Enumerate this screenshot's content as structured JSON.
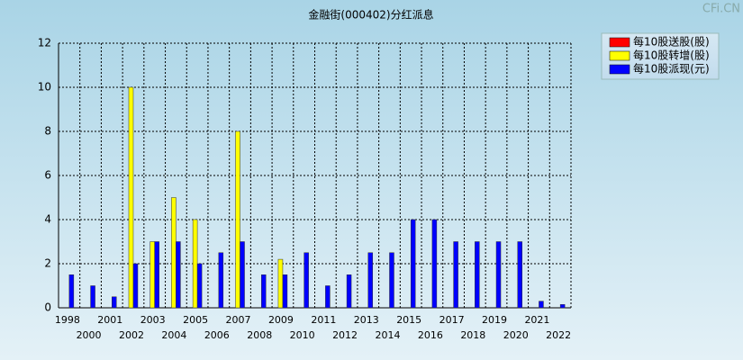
{
  "chart_data": {
    "type": "bar",
    "title": "金融街(000402)分红派息",
    "watermark": "CFi.CN",
    "categories": [
      "1998",
      "2000",
      "2001",
      "2002",
      "2003",
      "2004",
      "2005",
      "2006",
      "2007",
      "2008",
      "2009",
      "2010",
      "2011",
      "2012",
      "2013",
      "2014",
      "2015",
      "2016",
      "2017",
      "2018",
      "2019",
      "2020",
      "2021",
      "2022"
    ],
    "series": [
      {
        "name": "每10股送股(股)",
        "color": "#ff0000",
        "values": [
          0,
          0,
          0,
          0,
          0,
          0,
          0,
          0,
          0,
          0,
          0,
          0,
          0,
          0,
          0,
          0,
          0,
          0,
          0,
          0,
          0,
          0,
          0,
          0
        ]
      },
      {
        "name": "每10股转增(股)",
        "color": "#ffff00",
        "values": [
          0,
          0,
          0,
          10,
          3,
          5,
          4,
          0,
          8,
          0,
          2.2,
          0,
          0,
          0,
          0,
          0,
          0,
          0,
          0,
          0,
          0,
          0,
          0,
          0
        ]
      },
      {
        "name": "每10股派现(元)",
        "color": "#0000ff",
        "values": [
          1.5,
          1,
          0.5,
          2,
          3,
          3,
          2,
          2.5,
          3,
          1.5,
          1.5,
          2.5,
          1,
          1.5,
          2.5,
          2.5,
          4,
          4,
          3,
          3,
          3,
          3,
          0.3,
          0.15
        ]
      }
    ],
    "ylim": [
      0,
      12
    ],
    "yticks": [
      0,
      2,
      4,
      6,
      8,
      10,
      12
    ],
    "grid": true
  }
}
